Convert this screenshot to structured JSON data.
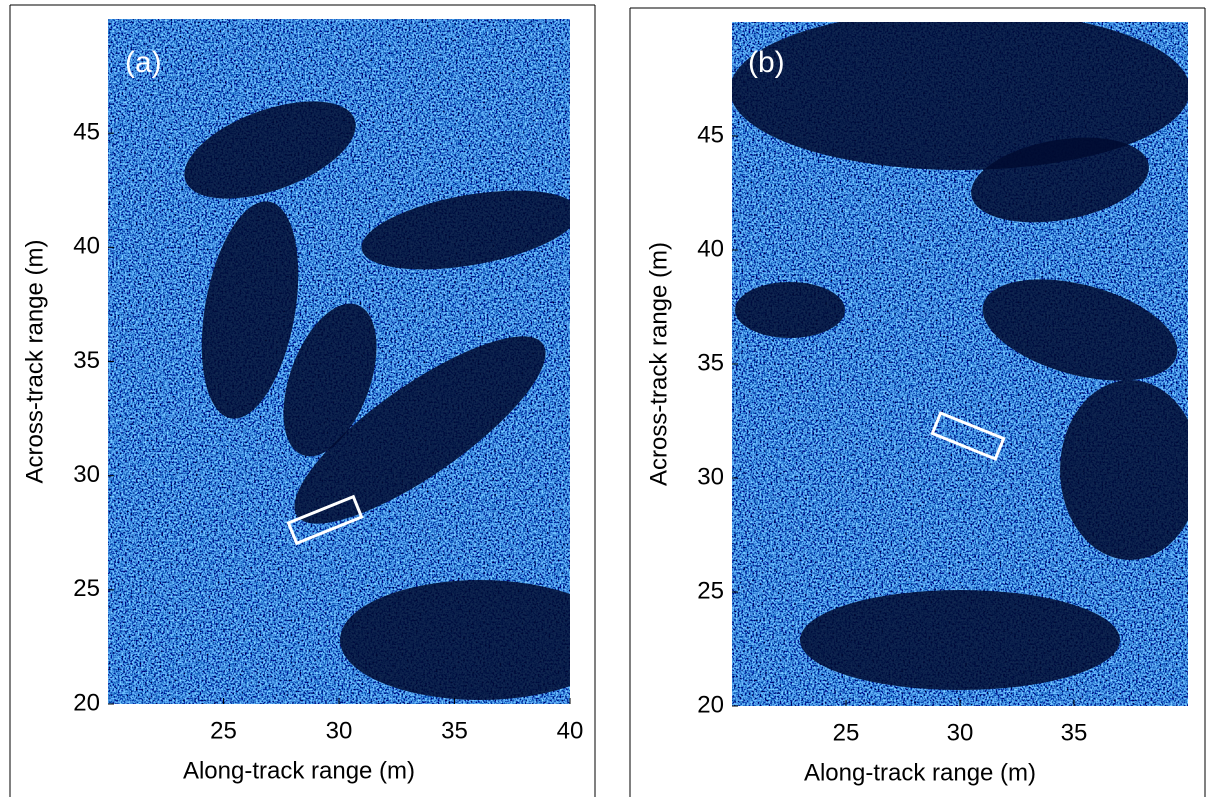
{
  "chart_data": [
    {
      "type": "image",
      "panel_label": "(a)",
      "xlabel": "Along-track range (m)",
      "ylabel": "Across-track range (m)",
      "xlim": [
        20,
        40
      ],
      "xticks": [
        25,
        30,
        35,
        40
      ],
      "ylim": [
        20,
        50
      ],
      "yticks": [
        20,
        25,
        30,
        35,
        40,
        45
      ]
    },
    {
      "type": "image",
      "panel_label": "(b)",
      "xlabel": "Along-track range (m)",
      "ylabel": "Across-track range (m)",
      "xlim": [
        20,
        40
      ],
      "xticks": [
        25,
        30,
        35
      ],
      "ylim": [
        20,
        50
      ],
      "yticks": [
        20,
        25,
        30,
        35,
        40,
        45
      ]
    }
  ]
}
